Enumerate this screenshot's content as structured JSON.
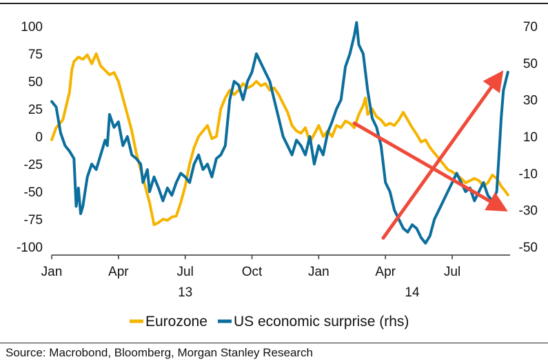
{
  "chart_data": {
    "type": "line",
    "source": "Source: Macrobond, Bloomberg, Morgan Stanley Research",
    "x_tick_labels": [
      "Jan",
      "Apr",
      "Jul",
      "Oct",
      "Jan",
      "Apr",
      "Jul"
    ],
    "x_year_labels": [
      "13",
      "14"
    ],
    "x_range_months": [
      0,
      20.6
    ],
    "y_left_ticks": [
      "100",
      "75",
      "50",
      "25",
      "0",
      "-25",
      "-50",
      "-75",
      "-100"
    ],
    "y_left_range": [
      -100,
      100
    ],
    "y_right_ticks": [
      "70",
      "50",
      "30",
      "10",
      "-10",
      "-30",
      "-50"
    ],
    "y_right_range": [
      -50,
      70
    ],
    "legend": [
      {
        "name": "Eurozone",
        "color": "#f5b400"
      },
      {
        "name": "US economic surprise (rhs)",
        "color": "#0b6e9c"
      }
    ],
    "series": [
      {
        "name": "Eurozone",
        "axis": "left",
        "color": "#f5b400",
        "points": [
          [
            0.0,
            -3
          ],
          [
            0.2,
            8
          ],
          [
            0.5,
            15
          ],
          [
            0.8,
            40
          ],
          [
            0.9,
            60
          ],
          [
            1.0,
            68
          ],
          [
            1.2,
            72
          ],
          [
            1.4,
            70
          ],
          [
            1.6,
            74
          ],
          [
            1.8,
            66
          ],
          [
            2.0,
            75
          ],
          [
            2.2,
            64
          ],
          [
            2.4,
            60
          ],
          [
            2.6,
            56
          ],
          [
            2.8,
            58
          ],
          [
            3.0,
            50
          ],
          [
            3.2,
            35
          ],
          [
            3.4,
            20
          ],
          [
            3.6,
            5
          ],
          [
            3.8,
            -15
          ],
          [
            4.0,
            -30
          ],
          [
            4.2,
            -45
          ],
          [
            4.4,
            -60
          ],
          [
            4.6,
            -80
          ],
          [
            4.8,
            -78
          ],
          [
            5.0,
            -75
          ],
          [
            5.2,
            -76
          ],
          [
            5.4,
            -73
          ],
          [
            5.6,
            -72
          ],
          [
            5.8,
            -60
          ],
          [
            6.0,
            -45
          ],
          [
            6.2,
            -25
          ],
          [
            6.4,
            -10
          ],
          [
            6.6,
            0
          ],
          [
            6.8,
            5
          ],
          [
            7.0,
            10
          ],
          [
            7.2,
            -2
          ],
          [
            7.4,
            0
          ],
          [
            7.6,
            25
          ],
          [
            7.8,
            35
          ],
          [
            8.0,
            42
          ],
          [
            8.2,
            38
          ],
          [
            8.4,
            42
          ],
          [
            8.6,
            48
          ],
          [
            8.8,
            44
          ],
          [
            9.0,
            46
          ],
          [
            9.2,
            50
          ],
          [
            9.4,
            46
          ],
          [
            9.6,
            48
          ],
          [
            9.8,
            42
          ],
          [
            10.0,
            44
          ],
          [
            10.2,
            38
          ],
          [
            10.4,
            30
          ],
          [
            10.6,
            22
          ],
          [
            10.8,
            10
          ],
          [
            11.0,
            5
          ],
          [
            11.2,
            3
          ],
          [
            11.4,
            8
          ],
          [
            11.6,
            -5
          ],
          [
            11.8,
            2
          ],
          [
            12.0,
            10
          ],
          [
            12.2,
            0
          ],
          [
            12.4,
            5
          ],
          [
            12.6,
            0
          ],
          [
            12.8,
            10
          ],
          [
            13.0,
            8
          ],
          [
            13.2,
            14
          ],
          [
            13.4,
            12
          ],
          [
            13.6,
            8
          ],
          [
            13.8,
            20
          ],
          [
            14.0,
            28
          ],
          [
            14.1,
            35
          ],
          [
            14.2,
            20
          ],
          [
            14.4,
            25
          ],
          [
            14.6,
            18
          ],
          [
            14.8,
            15
          ],
          [
            15.0,
            10
          ],
          [
            15.2,
            12
          ],
          [
            15.4,
            10
          ],
          [
            15.6,
            15
          ],
          [
            15.8,
            22
          ],
          [
            16.0,
            15
          ],
          [
            16.2,
            8
          ],
          [
            16.4,
            2
          ],
          [
            16.6,
            -5
          ],
          [
            16.8,
            -3
          ],
          [
            17.0,
            -10
          ],
          [
            17.2,
            -15
          ],
          [
            17.4,
            -20
          ],
          [
            17.6,
            -25
          ],
          [
            17.8,
            -30
          ],
          [
            18.0,
            -32
          ],
          [
            18.2,
            -35
          ],
          [
            18.4,
            -38
          ],
          [
            18.6,
            -42
          ],
          [
            18.8,
            -40
          ],
          [
            19.0,
            -38
          ],
          [
            19.2,
            -40
          ],
          [
            19.4,
            -45
          ],
          [
            19.6,
            -42
          ],
          [
            19.8,
            -35
          ],
          [
            20.0,
            -38
          ],
          [
            20.2,
            -45
          ],
          [
            20.4,
            -50
          ],
          [
            20.5,
            -53
          ]
        ]
      },
      {
        "name": "US economic surprise (rhs)",
        "axis": "right",
        "color": "#0b6e9c",
        "points": [
          [
            0.0,
            29
          ],
          [
            0.2,
            26
          ],
          [
            0.4,
            12
          ],
          [
            0.6,
            5
          ],
          [
            0.8,
            2
          ],
          [
            1.0,
            -2
          ],
          [
            1.1,
            -28
          ],
          [
            1.2,
            -18
          ],
          [
            1.3,
            -32
          ],
          [
            1.4,
            -28
          ],
          [
            1.5,
            -20
          ],
          [
            1.6,
            -12
          ],
          [
            1.8,
            -5
          ],
          [
            2.0,
            -8
          ],
          [
            2.2,
            0
          ],
          [
            2.4,
            8
          ],
          [
            2.5,
            5
          ],
          [
            2.6,
            22
          ],
          [
            2.8,
            15
          ],
          [
            3.0,
            18
          ],
          [
            3.2,
            5
          ],
          [
            3.4,
            10
          ],
          [
            3.6,
            0
          ],
          [
            3.8,
            -2
          ],
          [
            4.0,
            -5
          ],
          [
            4.1,
            -15
          ],
          [
            4.3,
            -8
          ],
          [
            4.4,
            -20
          ],
          [
            4.6,
            -12
          ],
          [
            4.8,
            -18
          ],
          [
            5.0,
            -25
          ],
          [
            5.2,
            -18
          ],
          [
            5.4,
            -22
          ],
          [
            5.6,
            -15
          ],
          [
            5.8,
            -10
          ],
          [
            6.0,
            -12
          ],
          [
            6.2,
            -15
          ],
          [
            6.4,
            -5
          ],
          [
            6.6,
            0
          ],
          [
            6.8,
            -8
          ],
          [
            7.0,
            -5
          ],
          [
            7.2,
            -12
          ],
          [
            7.4,
            -2
          ],
          [
            7.6,
            0
          ],
          [
            7.8,
            5
          ],
          [
            8.0,
            30
          ],
          [
            8.2,
            40
          ],
          [
            8.4,
            38
          ],
          [
            8.6,
            30
          ],
          [
            8.8,
            40
          ],
          [
            9.0,
            45
          ],
          [
            9.2,
            55
          ],
          [
            9.4,
            50
          ],
          [
            9.6,
            45
          ],
          [
            9.8,
            40
          ],
          [
            10.0,
            30
          ],
          [
            10.2,
            20
          ],
          [
            10.4,
            10
          ],
          [
            10.6,
            5
          ],
          [
            10.8,
            0
          ],
          [
            11.0,
            8
          ],
          [
            11.2,
            5
          ],
          [
            11.4,
            0
          ],
          [
            11.6,
            10
          ],
          [
            11.8,
            -5
          ],
          [
            12.0,
            5
          ],
          [
            12.2,
            0
          ],
          [
            12.4,
            12
          ],
          [
            12.6,
            18
          ],
          [
            12.8,
            25
          ],
          [
            13.0,
            30
          ],
          [
            13.2,
            48
          ],
          [
            13.4,
            55
          ],
          [
            13.6,
            65
          ],
          [
            13.7,
            72
          ],
          [
            13.8,
            60
          ],
          [
            14.0,
            55
          ],
          [
            14.2,
            35
          ],
          [
            14.4,
            20
          ],
          [
            14.6,
            15
          ],
          [
            14.8,
            5
          ],
          [
            15.0,
            -15
          ],
          [
            15.2,
            -20
          ],
          [
            15.4,
            -30
          ],
          [
            15.6,
            -35
          ],
          [
            15.8,
            -40
          ],
          [
            16.0,
            -42
          ],
          [
            16.2,
            -38
          ],
          [
            16.4,
            -40
          ],
          [
            16.6,
            -45
          ],
          [
            16.8,
            -48
          ],
          [
            17.0,
            -44
          ],
          [
            17.2,
            -35
          ],
          [
            17.4,
            -30
          ],
          [
            17.6,
            -25
          ],
          [
            17.8,
            -20
          ],
          [
            18.0,
            -15
          ],
          [
            18.2,
            -10
          ],
          [
            18.4,
            -15
          ],
          [
            18.6,
            -20
          ],
          [
            18.8,
            -18
          ],
          [
            19.0,
            -25
          ],
          [
            19.2,
            -20
          ],
          [
            19.4,
            -15
          ],
          [
            19.6,
            -22
          ],
          [
            19.8,
            -25
          ],
          [
            20.0,
            -20
          ],
          [
            20.1,
            0
          ],
          [
            20.2,
            20
          ],
          [
            20.3,
            35
          ],
          [
            20.4,
            40
          ],
          [
            20.5,
            45
          ]
        ]
      }
    ],
    "annotations": [
      {
        "type": "arrow",
        "color": "#ef4a3a",
        "from": [
          13.6,
          12
        ],
        "to": [
          20.5,
          -68
        ],
        "axis": "left"
      },
      {
        "type": "arrow",
        "color": "#ef4a3a",
        "from": [
          14.9,
          -92
        ],
        "to": [
          20.3,
          60
        ],
        "axis": "left"
      }
    ]
  }
}
